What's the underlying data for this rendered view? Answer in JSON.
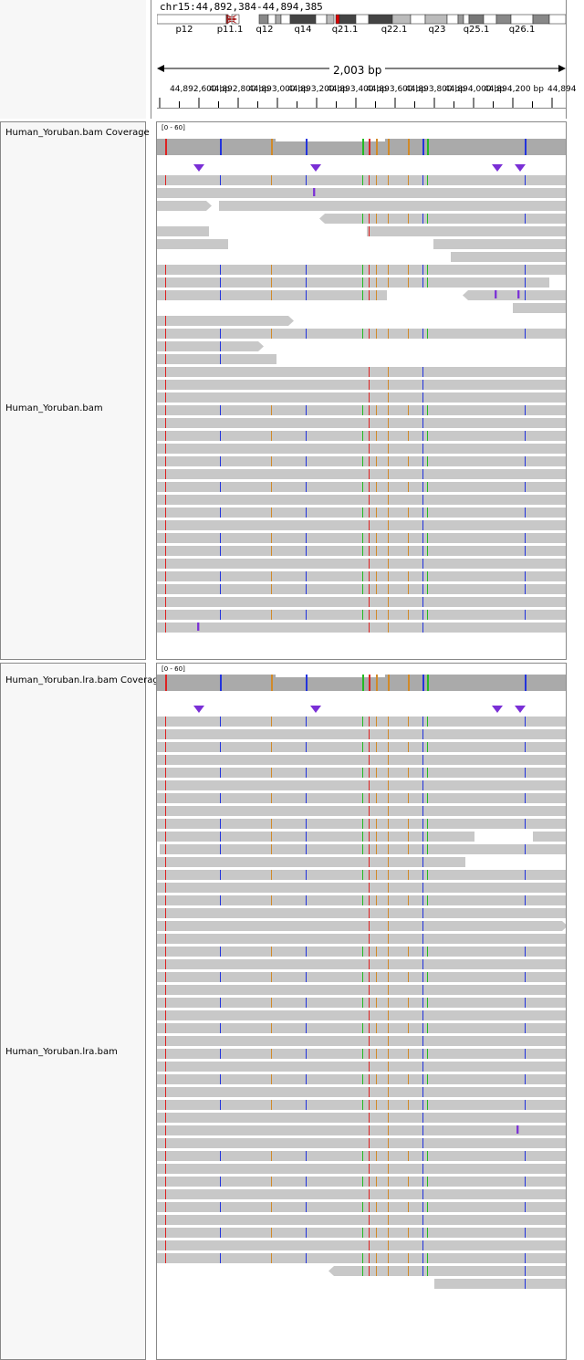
{
  "locus": "chr15:44,892,384-44,894,385",
  "ideogram": {
    "bands": [
      "p12",
      "p11.1",
      "q12",
      "q14",
      "q21.1",
      "q22.1",
      "q23",
      "q25.1",
      "q26.1"
    ]
  },
  "ruler": {
    "span": "2,003 bp",
    "ticks": [
      "44,892,600 bp",
      "44,892,800 bp",
      "44,893,000 bp",
      "44,893,200 bp",
      "44,893,400 bp",
      "44,893,600 bp",
      "44,893,800 bp",
      "44,894,000 bp",
      "44,894,200 bp",
      "44,894"
    ]
  },
  "tracks": [
    {
      "coverage_name": "Human_Yoruban.bam Coverage",
      "alignment_name": "Human_Yoruban.bam",
      "range": "[0 - 60]"
    },
    {
      "coverage_name": "Human_Yoruban.lra.bam Coverage",
      "alignment_name": "Human_Yoruban.lra.bam",
      "range": "[0 - 60]"
    }
  ],
  "colors": {
    "read": "#c8c8c8",
    "coverage": "#aaaaaa",
    "mismatch_A": "#22bb22",
    "mismatch_C": "#2233dd",
    "mismatch_G": "#d08a2a",
    "mismatch_T": "#dd2222",
    "insertion": "#7a2fd6"
  }
}
